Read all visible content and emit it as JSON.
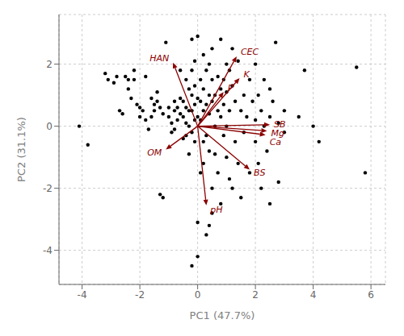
{
  "chart_data": {
    "type": "scatter",
    "xlabel": "PC1 (47.7%)",
    "ylabel": "PC2 (31.1%)",
    "xlim": [
      -4.8,
      6.5
    ],
    "ylim": [
      -5.1,
      3.6
    ],
    "xticks": [
      -4,
      -2,
      0,
      2,
      4,
      6
    ],
    "yticks": [
      -4,
      -2,
      0,
      2
    ],
    "grid": true,
    "series": [
      {
        "type": "scatter",
        "color": "#000000",
        "values": [
          [
            -4.1,
            0.0
          ],
          [
            -3.8,
            -0.6
          ],
          [
            -3.2,
            1.7
          ],
          [
            -3.1,
            1.5
          ],
          [
            -2.9,
            1.4
          ],
          [
            -2.8,
            1.6
          ],
          [
            -2.7,
            0.5
          ],
          [
            -2.6,
            0.4
          ],
          [
            -2.5,
            1.6
          ],
          [
            -2.4,
            1.5
          ],
          [
            -2.4,
            1.2
          ],
          [
            -2.3,
            0.9
          ],
          [
            -2.2,
            1.8
          ],
          [
            -2.2,
            1.5
          ],
          [
            -2.1,
            0.7
          ],
          [
            -2.0,
            0.6
          ],
          [
            -2.0,
            0.3
          ],
          [
            -1.9,
            0.5
          ],
          [
            -1.8,
            1.6
          ],
          [
            -1.8,
            0.2
          ],
          [
            -1.7,
            -0.1
          ],
          [
            -1.6,
            0.9
          ],
          [
            -1.6,
            0.3
          ],
          [
            -1.5,
            0.7
          ],
          [
            -1.5,
            0.5
          ],
          [
            -1.4,
            1.1
          ],
          [
            -1.4,
            0.8
          ],
          [
            -1.3,
            0.6
          ],
          [
            -1.3,
            -2.2
          ],
          [
            -1.2,
            0.4
          ],
          [
            -1.2,
            -2.3
          ],
          [
            -1.1,
            2.7
          ],
          [
            -1.0,
            0.6
          ],
          [
            -1.0,
            0.3
          ],
          [
            -0.9,
            0.1
          ],
          [
            -0.9,
            -0.2
          ],
          [
            -0.8,
            0.8
          ],
          [
            -0.8,
            0.5
          ],
          [
            -0.8,
            -0.1
          ],
          [
            -0.7,
            0.6
          ],
          [
            -0.7,
            0.2
          ],
          [
            -0.6,
            1.8
          ],
          [
            -0.6,
            0.9
          ],
          [
            -0.6,
            0.4
          ],
          [
            -0.5,
            0.8
          ],
          [
            -0.5,
            0.3
          ],
          [
            -0.5,
            -0.4
          ],
          [
            -0.4,
            1.5
          ],
          [
            -0.4,
            0.6
          ],
          [
            -0.4,
            0.1
          ],
          [
            -0.4,
            -0.3
          ],
          [
            -0.3,
            1.2
          ],
          [
            -0.3,
            0.5
          ],
          [
            -0.3,
            0.0
          ],
          [
            -0.3,
            -0.9
          ],
          [
            -0.2,
            2.8
          ],
          [
            -0.2,
            1.8
          ],
          [
            -0.2,
            1.0
          ],
          [
            -0.2,
            0.5
          ],
          [
            -0.2,
            -0.2
          ],
          [
            -0.2,
            -4.5
          ],
          [
            -0.1,
            2.1
          ],
          [
            -0.1,
            1.3
          ],
          [
            -0.1,
            0.7
          ],
          [
            -0.1,
            0.2
          ],
          [
            -0.1,
            -0.5
          ],
          [
            0.0,
            -3.1
          ],
          [
            0.0,
            -4.2
          ],
          [
            0.0,
            2.9
          ],
          [
            0.0,
            0.9
          ],
          [
            0.0,
            0.3
          ],
          [
            0.1,
            1.5
          ],
          [
            0.1,
            0.8
          ],
          [
            0.1,
            0.2
          ],
          [
            0.1,
            -1.5
          ],
          [
            0.2,
            2.3
          ],
          [
            0.2,
            1.2
          ],
          [
            0.2,
            0.5
          ],
          [
            0.2,
            -0.5
          ],
          [
            0.2,
            -1.2
          ],
          [
            0.3,
            1.8
          ],
          [
            0.3,
            0.7
          ],
          [
            0.3,
            -0.3
          ],
          [
            0.3,
            -3.5
          ],
          [
            0.4,
            2.0
          ],
          [
            0.4,
            1.0
          ],
          [
            0.4,
            0.4
          ],
          [
            0.4,
            -0.8
          ],
          [
            0.4,
            -3.2
          ],
          [
            0.5,
            2.5
          ],
          [
            0.5,
            1.5
          ],
          [
            0.5,
            0.8
          ],
          [
            0.5,
            -2.0
          ],
          [
            0.5,
            -2.8
          ],
          [
            0.6,
            1.0
          ],
          [
            0.6,
            0.0
          ],
          [
            0.6,
            -0.9
          ],
          [
            0.7,
            1.6
          ],
          [
            0.7,
            0.5
          ],
          [
            0.7,
            -1.5
          ],
          [
            0.8,
            2.8
          ],
          [
            0.8,
            1.2
          ],
          [
            0.8,
            0.3
          ],
          [
            0.8,
            -2.5
          ],
          [
            0.9,
            1.5
          ],
          [
            0.9,
            0.7
          ],
          [
            0.9,
            -0.3
          ],
          [
            1.0,
            2.0
          ],
          [
            1.0,
            1.1
          ],
          [
            1.0,
            0.0
          ],
          [
            1.0,
            -1.0
          ],
          [
            1.1,
            1.8
          ],
          [
            1.1,
            0.5
          ],
          [
            1.1,
            -1.7
          ],
          [
            1.2,
            2.5
          ],
          [
            1.2,
            1.3
          ],
          [
            1.2,
            -2.0
          ],
          [
            1.3,
            0.8
          ],
          [
            1.3,
            -0.5
          ],
          [
            1.4,
            2.1
          ],
          [
            1.4,
            -1.2
          ],
          [
            1.5,
            0.5
          ],
          [
            1.5,
            -2.3
          ],
          [
            1.6,
            1.0
          ],
          [
            1.6,
            -0.2
          ],
          [
            1.7,
            0.3
          ],
          [
            1.8,
            1.5
          ],
          [
            1.8,
            -1.5
          ],
          [
            1.9,
            0.8
          ],
          [
            2.0,
            2.0
          ],
          [
            2.0,
            0.2
          ],
          [
            2.0,
            -0.5
          ],
          [
            2.1,
            1.0
          ],
          [
            2.1,
            -1.2
          ],
          [
            2.2,
            0.5
          ],
          [
            2.2,
            -2.0
          ],
          [
            2.3,
            1.5
          ],
          [
            2.3,
            0.0
          ],
          [
            2.4,
            -0.8
          ],
          [
            2.5,
            1.2
          ],
          [
            2.5,
            0.3
          ],
          [
            2.5,
            -2.5
          ],
          [
            2.6,
            0.8
          ],
          [
            2.7,
            2.7
          ],
          [
            2.8,
            0.1
          ],
          [
            2.8,
            -1.8
          ],
          [
            3.0,
            0.5
          ],
          [
            3.0,
            -0.2
          ],
          [
            3.5,
            0.3
          ],
          [
            3.7,
            1.8
          ],
          [
            4.0,
            0.0
          ],
          [
            4.2,
            -0.5
          ],
          [
            5.5,
            1.9
          ],
          [
            5.8,
            -1.5
          ]
        ]
      },
      {
        "type": "arrow",
        "color": "#8B0000",
        "values": [
          {
            "name": "HAN",
            "x": -0.85,
            "y": 2.05
          },
          {
            "name": "CEC",
            "x": 1.35,
            "y": 2.25
          },
          {
            "name": "K",
            "x": 1.45,
            "y": 1.55
          },
          {
            "name": "P",
            "x": 0.9,
            "y": 1.1
          },
          {
            "name": "SB",
            "x": 2.5,
            "y": 0.05
          },
          {
            "name": "Mg",
            "x": 2.4,
            "y": -0.15
          },
          {
            "name": "Ca",
            "x": 2.35,
            "y": -0.28
          },
          {
            "name": "BS",
            "x": 1.8,
            "y": -1.4
          },
          {
            "name": "pH",
            "x": 0.3,
            "y": -2.55
          },
          {
            "name": "OM",
            "x": -1.1,
            "y": -0.75
          }
        ]
      }
    ]
  }
}
